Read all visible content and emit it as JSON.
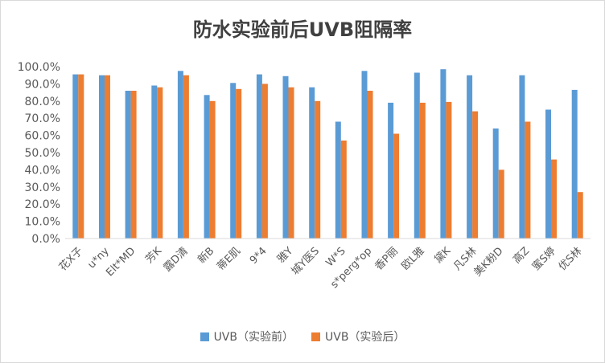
{
  "chart_data": {
    "type": "bar",
    "title": "防水实验前后UVB阻隔率",
    "categories": [
      "花X子",
      "u*ny",
      "Elt*MD",
      "芳K",
      "露D清",
      "新B",
      "蒂E肌",
      "9*4",
      "雅Y",
      "城Y医S",
      "W*S",
      "s*perg*op",
      "香P丽",
      "欧L雅",
      "黛K",
      "凡S林",
      "美K粉D",
      "高Z",
      "蜜S婷",
      "优S林"
    ],
    "series": [
      {
        "name": "UVB（实验前）",
        "color": "#5B9BD5",
        "values": [
          95.5,
          95.0,
          86.0,
          89.0,
          97.5,
          83.5,
          90.5,
          95.5,
          94.5,
          88.0,
          68.0,
          97.5,
          79.0,
          96.5,
          98.5,
          95.0,
          64.0,
          95.0,
          75.0,
          86.5
        ]
      },
      {
        "name": "UVB（实验后）",
        "color": "#ED7D31",
        "values": [
          95.5,
          95.0,
          86.0,
          88.0,
          95.0,
          80.0,
          87.0,
          90.0,
          88.0,
          80.0,
          57.0,
          86.0,
          61.0,
          79.0,
          79.5,
          74.0,
          40.0,
          68.0,
          46.0,
          27.0
        ]
      }
    ],
    "yticks": [
      "0.0%",
      "10.0%",
      "20.0%",
      "30.0%",
      "40.0%",
      "50.0%",
      "60.0%",
      "70.0%",
      "80.0%",
      "90.0%",
      "100.0%"
    ],
    "ylim": [
      0,
      100
    ],
    "xlabel": "",
    "ylabel": "",
    "grid": false,
    "legend": "bottom"
  }
}
